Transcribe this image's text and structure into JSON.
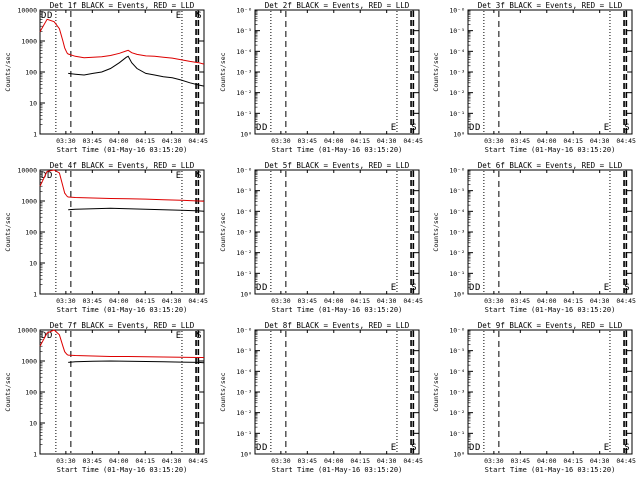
{
  "chart_data": [
    {
      "type": "line",
      "title": "Det 1f BLACK = Events, RED = LLD",
      "ylabel": "Counts/sec",
      "xlabel": "Start Time (01-May-16 03:15:20)",
      "x_ticks": [
        "03:30",
        "03:45",
        "04:00",
        "04:15",
        "04:30",
        "04:45"
      ],
      "y_scale": "log",
      "y_ticks": [
        "1",
        "10",
        "100",
        "1000",
        "10000"
      ],
      "flags": [
        "D",
        "E",
        "S"
      ],
      "x_minutes": [
        0,
        4,
        8,
        11,
        13,
        14,
        15,
        15.5,
        16,
        20,
        25,
        30,
        35,
        40,
        45,
        49,
        50,
        52,
        55,
        60,
        65,
        70,
        75,
        80,
        85,
        90,
        93
      ],
      "series": [
        {
          "color": "#dd0000",
          "values": [
            2000,
            5000,
            4200,
            2500,
            1000,
            600,
            450,
            400,
            380,
            320,
            290,
            300,
            310,
            340,
            400,
            480,
            500,
            420,
            370,
            330,
            320,
            300,
            280,
            250,
            220,
            200,
            180
          ]
        },
        {
          "color": "#000000",
          "values": [
            null,
            null,
            null,
            null,
            null,
            null,
            null,
            null,
            90,
            85,
            80,
            90,
            100,
            130,
            200,
            300,
            320,
            200,
            130,
            90,
            80,
            70,
            65,
            55,
            45,
            38,
            35
          ]
        }
      ]
    },
    {
      "type": "line",
      "title": "Det 2f BLACK = Events, RED = LLD",
      "ylabel": "Counts/sec",
      "xlabel": "Start Time (01-May-16 03:15:20)",
      "x_ticks": [
        "03:30",
        "03:45",
        "04:00",
        "04:15",
        "04:30",
        "04:45"
      ],
      "y_scale": "log",
      "y_ticks": [
        "10⁰",
        "10⁻¹",
        "10⁻²",
        "10⁻³",
        "10⁻⁴",
        "10⁻⁵",
        "10⁻⁶"
      ],
      "flags": [
        "D",
        "E",
        "S"
      ],
      "x_minutes": [],
      "series": []
    },
    {
      "type": "line",
      "title": "Det 3f BLACK = Events, RED = LLD",
      "ylabel": "Counts/sec",
      "xlabel": "Start Time (01-May-16 03:15:20)",
      "x_ticks": [
        "03:30",
        "03:45",
        "04:00",
        "04:15",
        "04:30",
        "04:45"
      ],
      "y_scale": "log",
      "y_ticks": [
        "10⁰",
        "10⁻¹",
        "10⁻²",
        "10⁻³",
        "10⁻⁴",
        "10⁻⁵",
        "10⁻⁶"
      ],
      "flags": [
        "D",
        "E",
        "S"
      ],
      "x_minutes": [],
      "series": []
    },
    {
      "type": "line",
      "title": "Det 4f BLACK = Events, RED = LLD",
      "ylabel": "Counts/sec",
      "xlabel": "Start Time (01-May-16 03:15:20)",
      "x_ticks": [
        "03:30",
        "03:45",
        "04:00",
        "04:15",
        "04:30",
        "04:45"
      ],
      "y_scale": "log",
      "y_ticks": [
        "1",
        "10",
        "100",
        "1000",
        "10000"
      ],
      "flags": [
        "D",
        "E",
        "S"
      ],
      "x_minutes": [
        0,
        4,
        8,
        11,
        13,
        14,
        15,
        15.5,
        16,
        20,
        30,
        40,
        50,
        60,
        70,
        80,
        90,
        93
      ],
      "series": [
        {
          "color": "#dd0000",
          "values": [
            3000,
            9000,
            12000,
            8000,
            3000,
            1800,
            1500,
            1400,
            1350,
            1300,
            1250,
            1200,
            1180,
            1150,
            1100,
            1050,
            1000,
            980
          ]
        },
        {
          "color": "#000000",
          "values": [
            null,
            null,
            null,
            null,
            null,
            null,
            null,
            null,
            520,
            540,
            560,
            580,
            560,
            540,
            520,
            500,
            480,
            470
          ]
        }
      ]
    },
    {
      "type": "line",
      "title": "Det 5f BLACK = Events, RED = LLD",
      "ylabel": "Counts/sec",
      "xlabel": "Start Time (01-May-16 03:15:20)",
      "x_ticks": [
        "03:30",
        "03:45",
        "04:00",
        "04:15",
        "04:30",
        "04:45"
      ],
      "y_scale": "log",
      "y_ticks": [
        "10⁰",
        "10⁻¹",
        "10⁻²",
        "10⁻³",
        "10⁻⁴",
        "10⁻⁵",
        "10⁻⁶"
      ],
      "flags": [
        "D",
        "E",
        "S"
      ],
      "x_minutes": [],
      "series": []
    },
    {
      "type": "line",
      "title": "Det 6f BLACK = Events, RED = LLD",
      "ylabel": "Counts/sec",
      "xlabel": "Start Time (01-May-16 03:15:20)",
      "x_ticks": [
        "03:30",
        "03:45",
        "04:00",
        "04:15",
        "04:30",
        "04:45"
      ],
      "y_scale": "log",
      "y_ticks": [
        "10⁰",
        "10⁻¹",
        "10⁻²",
        "10⁻³",
        "10⁻⁴",
        "10⁻⁵",
        "10⁻⁶"
      ],
      "flags": [
        "D",
        "E",
        "S"
      ],
      "x_minutes": [],
      "series": []
    },
    {
      "type": "line",
      "title": "Det 7f BLACK = Events, RED = LLD",
      "ylabel": "Counts/sec",
      "xlabel": "Start Time (01-May-16 03:15:20)",
      "x_ticks": [
        "03:30",
        "03:45",
        "04:00",
        "04:15",
        "04:30",
        "04:45"
      ],
      "y_scale": "log",
      "y_ticks": [
        "1",
        "10",
        "100",
        "1000",
        "10000"
      ],
      "flags": [
        "D",
        "E",
        "S"
      ],
      "x_minutes": [
        0,
        4,
        8,
        11,
        13,
        14,
        15,
        15.5,
        16,
        20,
        30,
        40,
        50,
        60,
        70,
        80,
        90,
        93
      ],
      "series": [
        {
          "color": "#dd0000",
          "values": [
            3000,
            8000,
            10000,
            7000,
            3000,
            2000,
            1700,
            1600,
            1550,
            1500,
            1450,
            1400,
            1400,
            1380,
            1350,
            1320,
            1300,
            1300
          ]
        },
        {
          "color": "#000000",
          "values": [
            null,
            null,
            null,
            null,
            null,
            null,
            null,
            null,
            900,
            950,
            980,
            1000,
            980,
            960,
            940,
            920,
            900,
            880
          ]
        }
      ]
    },
    {
      "type": "line",
      "title": "Det 8f BLACK = Events, RED = LLD",
      "ylabel": "Counts/sec",
      "xlabel": "Start Time (01-May-16 03:15:20)",
      "x_ticks": [
        "03:30",
        "03:45",
        "04:00",
        "04:15",
        "04:30",
        "04:45"
      ],
      "y_scale": "log",
      "y_ticks": [
        "10⁰",
        "10⁻¹",
        "10⁻²",
        "10⁻³",
        "10⁻⁴",
        "10⁻⁵",
        "10⁻⁶"
      ],
      "flags": [
        "D",
        "E",
        "S"
      ],
      "x_minutes": [],
      "series": []
    },
    {
      "type": "line",
      "title": "Det 9f BLACK = Events, RED = LLD",
      "ylabel": "Counts/sec",
      "xlabel": "Start Time (01-May-16 03:15:20)",
      "x_ticks": [
        "03:30",
        "03:45",
        "04:00",
        "04:15",
        "04:30",
        "04:45"
      ],
      "y_scale": "log",
      "y_ticks": [
        "10⁰",
        "10⁻¹",
        "10⁻²",
        "10⁻³",
        "10⁻⁴",
        "10⁻⁵",
        "10⁻⁶"
      ],
      "flags": [
        "D",
        "E",
        "S"
      ],
      "x_minutes": [],
      "series": []
    }
  ]
}
